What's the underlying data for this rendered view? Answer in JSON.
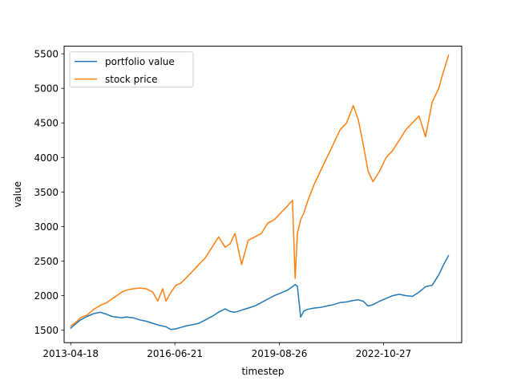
{
  "chart_data": {
    "type": "line",
    "title": "",
    "xlabel": "timestep",
    "ylabel": "value",
    "xlim": [
      2013.1,
      2025.2
    ],
    "ylim": [
      1320,
      5610
    ],
    "x_ticks": [
      {
        "label": "2013-04-18",
        "value": 2013.3
      },
      {
        "label": "2016-06-21",
        "value": 2016.47
      },
      {
        "label": "2019-08-26",
        "value": 2019.65
      },
      {
        "label": "2022-10-27",
        "value": 2022.82
      }
    ],
    "y_ticks": [
      1500,
      2000,
      2500,
      3000,
      3500,
      4000,
      4500,
      5000,
      5500
    ],
    "legend": {
      "position": "top-left"
    },
    "grid": false,
    "series": [
      {
        "name": "portfolio value",
        "color": "#1f77b4",
        "x": [
          2013.3,
          2013.45,
          2013.6,
          2013.8,
          2014.0,
          2014.2,
          2014.4,
          2014.55,
          2014.7,
          2014.85,
          2015.0,
          2015.2,
          2015.4,
          2015.6,
          2015.8,
          2016.0,
          2016.2,
          2016.35,
          2016.5,
          2016.65,
          2016.8,
          2017.0,
          2017.2,
          2017.4,
          2017.6,
          2017.8,
          2018.0,
          2018.15,
          2018.3,
          2018.5,
          2018.7,
          2018.9,
          2019.1,
          2019.3,
          2019.5,
          2019.7,
          2019.9,
          2020.05,
          2020.13,
          2020.2,
          2020.3,
          2020.4,
          2020.5,
          2020.7,
          2020.9,
          2021.1,
          2021.3,
          2021.5,
          2021.7,
          2021.9,
          2022.05,
          2022.2,
          2022.35,
          2022.5,
          2022.7,
          2022.9,
          2023.1,
          2023.3,
          2023.5,
          2023.7,
          2023.9,
          2024.1,
          2024.3,
          2024.5,
          2024.65,
          2024.8
        ],
        "y": [
          1530,
          1590,
          1650,
          1700,
          1740,
          1760,
          1730,
          1700,
          1690,
          1680,
          1690,
          1680,
          1650,
          1630,
          1600,
          1570,
          1550,
          1510,
          1520,
          1540,
          1560,
          1580,
          1600,
          1650,
          1700,
          1760,
          1810,
          1770,
          1760,
          1790,
          1820,
          1850,
          1900,
          1950,
          2000,
          2040,
          2080,
          2130,
          2160,
          2140,
          1690,
          1780,
          1800,
          1820,
          1830,
          1850,
          1870,
          1900,
          1910,
          1930,
          1940,
          1920,
          1850,
          1870,
          1920,
          1960,
          2000,
          2020,
          2000,
          1990,
          2050,
          2130,
          2150,
          2300,
          2450,
          2580
        ]
      },
      {
        "name": "stock price",
        "color": "#ff7f0e",
        "x": [
          2013.3,
          2013.45,
          2013.6,
          2013.8,
          2014.0,
          2014.2,
          2014.4,
          2014.55,
          2014.7,
          2014.85,
          2015.0,
          2015.2,
          2015.4,
          2015.6,
          2015.8,
          2015.95,
          2016.1,
          2016.2,
          2016.35,
          2016.5,
          2016.65,
          2016.8,
          2017.0,
          2017.2,
          2017.4,
          2017.6,
          2017.8,
          2018.0,
          2018.15,
          2018.3,
          2018.5,
          2018.7,
          2018.9,
          2019.1,
          2019.3,
          2019.5,
          2019.7,
          2019.9,
          2020.05,
          2020.13,
          2020.2,
          2020.3,
          2020.4,
          2020.5,
          2020.7,
          2020.9,
          2021.1,
          2021.3,
          2021.5,
          2021.7,
          2021.9,
          2022.05,
          2022.2,
          2022.35,
          2022.5,
          2022.7,
          2022.9,
          2023.1,
          2023.3,
          2023.5,
          2023.7,
          2023.9,
          2024.1,
          2024.3,
          2024.5,
          2024.65,
          2024.8
        ],
        "y": [
          1560,
          1610,
          1680,
          1720,
          1800,
          1860,
          1900,
          1950,
          2000,
          2050,
          2080,
          2100,
          2110,
          2100,
          2050,
          1920,
          2100,
          1920,
          2050,
          2150,
          2180,
          2250,
          2350,
          2450,
          2550,
          2700,
          2850,
          2700,
          2750,
          2900,
          2450,
          2800,
          2850,
          2900,
          3050,
          3100,
          3200,
          3300,
          3380,
          2250,
          2900,
          3100,
          3200,
          3350,
          3600,
          3800,
          4000,
          4200,
          4400,
          4500,
          4750,
          4550,
          4200,
          3800,
          3650,
          3800,
          4000,
          4100,
          4250,
          4400,
          4500,
          4600,
          4300,
          4800,
          5000,
          5250,
          5480
        ]
      }
    ]
  }
}
